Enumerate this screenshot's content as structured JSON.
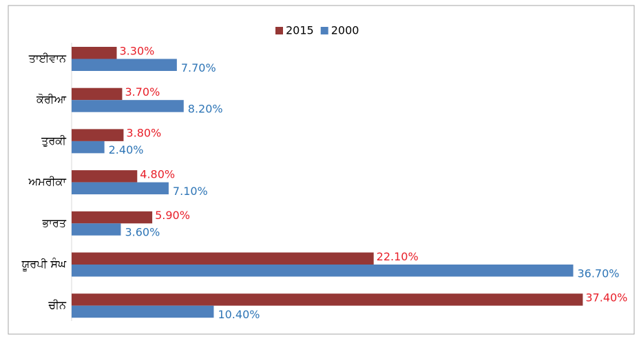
{
  "chart_data": {
    "type": "bar",
    "orientation": "horizontal",
    "categories": [
      "ਤਾਈਵਾਨ",
      "ਕੋਰੀਆ",
      "ਤੁਰਕੀ",
      "ਅਮਰੀਕਾ",
      "ਭਾਰਤ",
      "ਯੂਰਪੀ ਸੰਘ",
      "ਚੀਨ"
    ],
    "series": [
      {
        "name": "2015",
        "color": "#953735",
        "label_color": "#e8202a",
        "values": [
          3.3,
          3.7,
          3.8,
          4.8,
          5.9,
          22.1,
          37.4
        ],
        "value_labels": [
          "3.30%",
          "3.70%",
          "3.80%",
          "4.80%",
          "5.90%",
          "22.10%",
          "37.40%"
        ]
      },
      {
        "name": "2000",
        "color": "#4f81bd",
        "label_color": "#2e75b6",
        "values": [
          7.7,
          8.2,
          2.4,
          7.1,
          3.6,
          36.7,
          10.4
        ],
        "value_labels": [
          "7.70%",
          "8.20%",
          "2.40%",
          "7.10%",
          "3.60%",
          "36.70%",
          "10.40%"
        ]
      }
    ],
    "xlim": [
      0,
      40
    ],
    "legend": "top"
  }
}
